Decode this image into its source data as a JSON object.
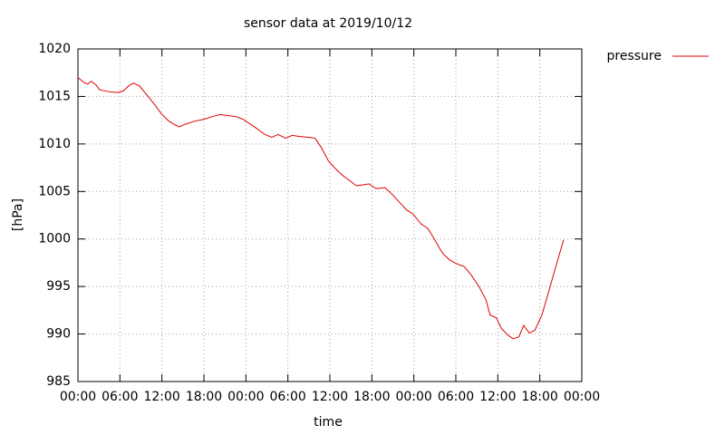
{
  "chart_data": {
    "type": "line",
    "title": "sensor data at 2019/10/12",
    "x_label": "time",
    "y_label": "[hPa]",
    "x": [
      0,
      0.8,
      1.4,
      1.9,
      2.6,
      3.1,
      4.4,
      5.7,
      6.5,
      7.4,
      8.0,
      8.8,
      9.8,
      10.9,
      11.9,
      13.0,
      13.9,
      14.5,
      15.4,
      16.7,
      18.0,
      19.3,
      20.3,
      21.2,
      22.5,
      23.6,
      24.6,
      25.6,
      26.7,
      27.7,
      28.6,
      29.7,
      30.6,
      31.6,
      32.9,
      33.9,
      34.8,
      35.8,
      36.8,
      37.8,
      38.9,
      39.8,
      40.7,
      41.6,
      42.6,
      43.9,
      44.9,
      45.9,
      46.9,
      47.9,
      49.0,
      50.0,
      51.0,
      52.1,
      53.1,
      54.1,
      55.2,
      56.2,
      57.3,
      58.3,
      58.9,
      59.8,
      60.5,
      61.4,
      62.2,
      63.0,
      63.7,
      64.5,
      65.3,
      66.3,
      67.4,
      68.4,
      69.4
    ],
    "series": [
      {
        "name": "pressure",
        "color": "#e00000",
        "values": [
          1017.0,
          1016.5,
          1016.3,
          1016.6,
          1016.2,
          1015.7,
          1015.5,
          1015.4,
          1015.6,
          1016.2,
          1016.4,
          1016.1,
          1015.2,
          1014.2,
          1013.2,
          1012.4,
          1012.0,
          1011.8,
          1012.1,
          1012.4,
          1012.6,
          1012.9,
          1013.1,
          1013.0,
          1012.9,
          1012.6,
          1012.1,
          1011.6,
          1011.0,
          1010.7,
          1011.0,
          1010.6,
          1010.9,
          1010.8,
          1010.7,
          1010.6,
          1009.6,
          1008.2,
          1007.4,
          1006.7,
          1006.1,
          1005.6,
          1005.7,
          1005.8,
          1005.3,
          1005.4,
          1004.7,
          1003.9,
          1003.1,
          1002.6,
          1001.6,
          1001.1,
          999.9,
          998.5,
          997.8,
          997.4,
          997.1,
          996.2,
          995.0,
          993.6,
          992.0,
          991.7,
          990.6,
          989.9,
          989.5,
          989.7,
          990.9,
          990.1,
          990.4,
          992.0,
          994.8,
          997.4,
          999.9
        ]
      }
    ],
    "xlim": [
      0,
      72
    ],
    "ylim": [
      985,
      1020
    ],
    "xticks": [
      {
        "value": 0,
        "label": "00:00"
      },
      {
        "value": 6,
        "label": "06:00"
      },
      {
        "value": 12,
        "label": "12:00"
      },
      {
        "value": 18,
        "label": "18:00"
      },
      {
        "value": 24,
        "label": "00:00"
      },
      {
        "value": 30,
        "label": "06:00"
      },
      {
        "value": 36,
        "label": "12:00"
      },
      {
        "value": 42,
        "label": "18:00"
      },
      {
        "value": 48,
        "label": "00:00"
      },
      {
        "value": 54,
        "label": "06:00"
      },
      {
        "value": 60,
        "label": "12:00"
      },
      {
        "value": 66,
        "label": "18:00"
      },
      {
        "value": 72,
        "label": "00:00"
      }
    ],
    "yticks": [
      985,
      990,
      995,
      1000,
      1005,
      1010,
      1015,
      1020
    ],
    "grid": true,
    "legend": "outside-right-top"
  }
}
